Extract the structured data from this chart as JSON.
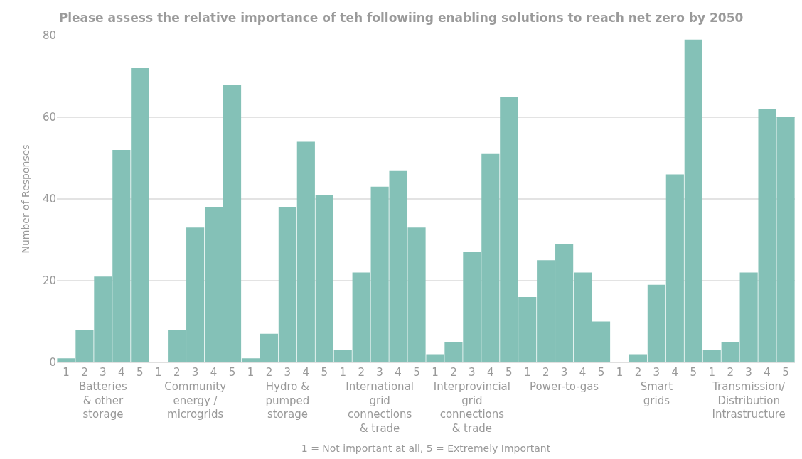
{
  "chart_data": {
    "type": "bar",
    "title": "Please assess the relative importance of teh followiing enabling solutions to reach net zero by 2050",
    "xlabel": "1 = Not important at all, 5 = Extremely Important",
    "ylabel": "Number of Responses",
    "categories": [
      "Batteries & other storage",
      "Community energy / microgrids",
      "Hydro & pumped storage",
      "International grid connections & trade",
      "Interprovincial grid connections & trade",
      "Power-to-gas",
      "Smart grids",
      "Transmission/Distribution Intrastructure"
    ],
    "series": [
      {
        "name": "1",
        "color": "#84c1b7",
        "values": [
          1,
          0,
          1,
          3,
          2,
          16,
          0,
          3
        ]
      },
      {
        "name": "2",
        "color": "#84c1b7",
        "values": [
          8,
          8,
          7,
          22,
          5,
          25,
          2,
          5
        ]
      },
      {
        "name": "3",
        "color": "#84c1b7",
        "values": [
          21,
          33,
          38,
          43,
          27,
          29,
          19,
          22
        ]
      },
      {
        "name": "4",
        "color": "#84c1b7",
        "values": [
          52,
          38,
          54,
          47,
          51,
          22,
          46,
          62
        ]
      },
      {
        "name": "5",
        "color": "#84c1b7",
        "values": [
          72,
          68,
          41,
          33,
          65,
          10,
          79,
          60
        ]
      }
    ],
    "ylim": [
      0,
      80
    ],
    "yticks": [
      0,
      20,
      40,
      60,
      80
    ],
    "grid": "y",
    "legend": false
  }
}
